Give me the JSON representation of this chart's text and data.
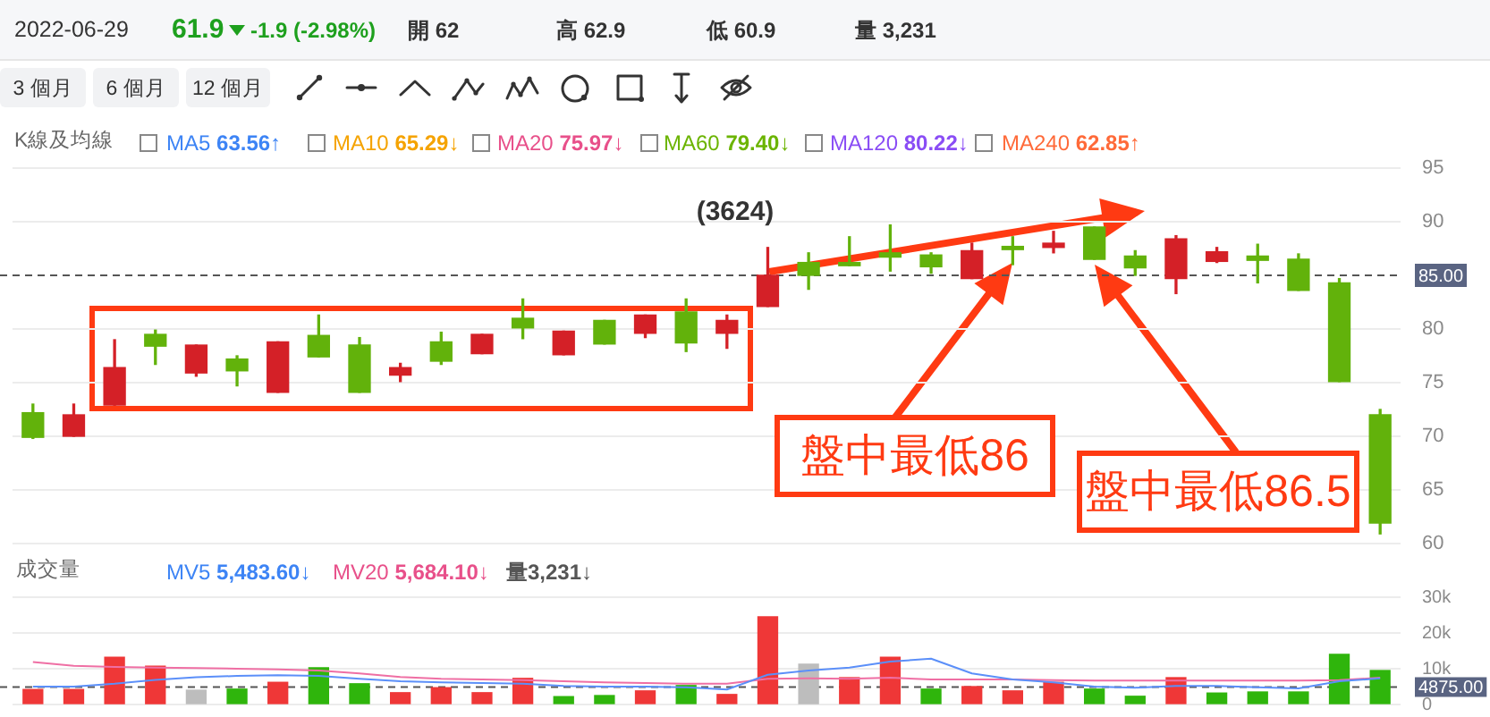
{
  "chart_data": [
    {
      "type": "candlestick",
      "title": "(3624)",
      "categories": [
        null,
        null,
        null,
        null,
        null,
        null,
        null,
        null,
        null,
        null,
        null,
        null,
        null,
        null,
        null,
        null,
        null,
        null,
        null,
        null,
        null,
        null,
        null,
        null,
        null,
        null,
        null,
        null,
        null,
        null,
        null,
        null,
        null,
        null
      ],
      "ohlc": [
        [
          72.2,
          73.0,
          69.8,
          69.9
        ],
        [
          70.0,
          73.0,
          70.0,
          72.0
        ],
        [
          72.9,
          79.0,
          72.9,
          76.4
        ],
        [
          79.5,
          79.9,
          76.7,
          78.4
        ],
        [
          75.9,
          78.5,
          75.6,
          78.5
        ],
        [
          77.2,
          77.5,
          74.7,
          76.1
        ],
        [
          74.1,
          78.8,
          74.1,
          78.8
        ],
        [
          79.4,
          81.3,
          77.4,
          77.4
        ],
        [
          78.5,
          79.2,
          74.1,
          74.1
        ],
        [
          75.7,
          76.8,
          75.1,
          76.4
        ],
        [
          78.8,
          79.7,
          76.7,
          77.0
        ],
        [
          77.7,
          79.5,
          77.7,
          79.5
        ],
        [
          81.0,
          82.8,
          79.1,
          80.1
        ],
        [
          77.6,
          79.8,
          77.6,
          79.8
        ],
        [
          80.8,
          80.8,
          78.6,
          78.6
        ],
        [
          79.6,
          81.3,
          79.2,
          81.3
        ],
        [
          81.6,
          82.8,
          77.9,
          78.7
        ],
        [
          79.6,
          81.3,
          78.2,
          80.8
        ],
        [
          82.1,
          87.6,
          82.1,
          85.0
        ],
        [
          86.2,
          87.1,
          83.7,
          85.0
        ],
        [
          86.2,
          88.6,
          85.9,
          85.9
        ],
        [
          87.1,
          89.7,
          85.4,
          86.7
        ],
        [
          86.9,
          87.1,
          85.2,
          85.8
        ],
        [
          84.7,
          88.0,
          84.7,
          87.3
        ],
        [
          87.7,
          88.6,
          86.0,
          87.4
        ],
        [
          87.6,
          89.1,
          87.1,
          88.0
        ],
        [
          89.5,
          89.5,
          86.5,
          86.5
        ],
        [
          86.8,
          87.3,
          85.0,
          85.7
        ],
        [
          84.7,
          88.7,
          83.3,
          88.4
        ],
        [
          86.3,
          87.6,
          86.2,
          87.2
        ],
        [
          86.8,
          87.9,
          84.3,
          86.4
        ],
        [
          86.5,
          87.0,
          83.6,
          83.6
        ],
        [
          84.3,
          84.7,
          75.1,
          75.1
        ],
        [
          72.0,
          72.5,
          60.9,
          61.9
        ]
      ],
      "colors": [
        "#62b20b",
        "#d42027",
        "#d42027",
        "#62b20b",
        "#d42027",
        "#62b20b",
        "#d42027",
        "#62b20b",
        "#62b20b",
        "#d42027",
        "#62b20b",
        "#d42027",
        "#62b20b",
        "#d42027",
        "#62b20b",
        "#d42027",
        "#62b20b",
        "#d42027",
        "#d42027",
        "#62b20b",
        "#62b20b",
        "#62b20b",
        "#62b20b",
        "#d42027",
        "#62b20b",
        "#d42027",
        "#62b20b",
        "#62b20b",
        "#d42027",
        "#d42027",
        "#62b20b",
        "#62b20b",
        "#62b20b",
        "#62b20b"
      ],
      "ylim": [
        60,
        95
      ],
      "yticks": [
        60,
        65,
        70,
        75,
        80,
        90,
        95
      ],
      "grid": "y",
      "ref_lines": [
        {
          "axis": "y",
          "value": 85,
          "label": "85.00",
          "line_style": "dashed",
          "color": "#555555"
        }
      ],
      "annotations": [
        "2022-06-29",
        "61.9",
        "-1.9 (-2.98%)",
        "開 62",
        "高 62.9",
        "低 60.9",
        "量 3,231",
        "3 個月",
        "6 個月",
        "12 個月",
        "K線及均線",
        "MA5 63.56↑",
        "MA10 65.29↓",
        "MA20 75.97↓",
        "MA60 79.40↓",
        "MA120 80.22↓",
        "MA240 62.85↑",
        "盤中最低86",
        "盤中最低86.5"
      ]
    },
    {
      "type": "bar",
      "title": "成交量",
      "categories": [
        null,
        null,
        null,
        null,
        null,
        null,
        null,
        null,
        null,
        null,
        null,
        null,
        null,
        null,
        null,
        null,
        null,
        null,
        null,
        null,
        null,
        null,
        null,
        null,
        null,
        null,
        null,
        null,
        null,
        null,
        null,
        null,
        null,
        null
      ],
      "series": [
        {
          "type": "bar",
          "values": [
            4200,
            4200,
            13200,
            10700,
            4000,
            4300,
            6200,
            10300,
            5800,
            3300,
            4700,
            3300,
            7300,
            2200,
            2500,
            3800,
            5300,
            2800,
            24500,
            11300,
            7500,
            13200,
            4300,
            5000,
            3800,
            6200,
            4300,
            2300,
            7500,
            3200,
            3500,
            3500,
            14000,
            9500
          ],
          "colors": [
            "#ef3737",
            "#ef3737",
            "#ef3737",
            "#ef3737",
            "#bdbdbd",
            "#2fb50c",
            "#ef3737",
            "#2fb50c",
            "#2fb50c",
            "#ef3737",
            "#ef3737",
            "#ef3737",
            "#ef3737",
            "#2fb50c",
            "#2fb50c",
            "#ef3737",
            "#2fb50c",
            "#ef3737",
            "#ef3737",
            "#bdbdbd",
            "#ef3737",
            "#ef3737",
            "#2fb50c",
            "#ef3737",
            "#ef3737",
            "#ef3737",
            "#2fb50c",
            "#2fb50c",
            "#ef3737",
            "#2fb50c",
            "#2fb50c",
            "#2fb50c",
            "#2fb50c",
            "#2fb50c"
          ]
        },
        {
          "type": "line",
          "color": "#5b8ff9",
          "values": [
            5000,
            5000,
            5800,
            6900,
            7600,
            8000,
            8200,
            8000,
            7200,
            6500,
            6200,
            6000,
            5800,
            5200,
            5000,
            5000,
            4800,
            4200,
            8300,
            9500,
            10300,
            12000,
            12800,
            8700,
            7000,
            6200,
            5000,
            4700,
            5200,
            5200,
            4800,
            4500,
            6500,
            7300
          ]
        },
        {
          "type": "line",
          "color": "#ef6fa4",
          "values": [
            11900,
            10800,
            10500,
            10300,
            10200,
            10000,
            9800,
            9500,
            8700,
            7700,
            7200,
            7000,
            6800,
            6500,
            6200,
            6000,
            5800,
            5800,
            7200,
            7300,
            7200,
            7500,
            7000,
            7000,
            7000,
            6800,
            6700,
            6700,
            6700,
            6700,
            6700,
            6700,
            6800,
            7500
          ]
        }
      ],
      "ylim": [
        0,
        30000
      ],
      "yticks": [
        0,
        {
          "value": 10000,
          "label": "10k"
        },
        {
          "value": 20000,
          "label": "20k"
        },
        {
          "value": 30000,
          "label": "30k"
        }
      ],
      "grid": "y",
      "ref_lines": [
        {
          "axis": "y",
          "value": 4875,
          "label": "4875.00",
          "line_style": "dashed",
          "color": "#555555"
        }
      ],
      "annotations": [
        "MV5 5,483.60↓",
        "MV20 5,684.10↓",
        "量3,231↓"
      ]
    }
  ]
}
